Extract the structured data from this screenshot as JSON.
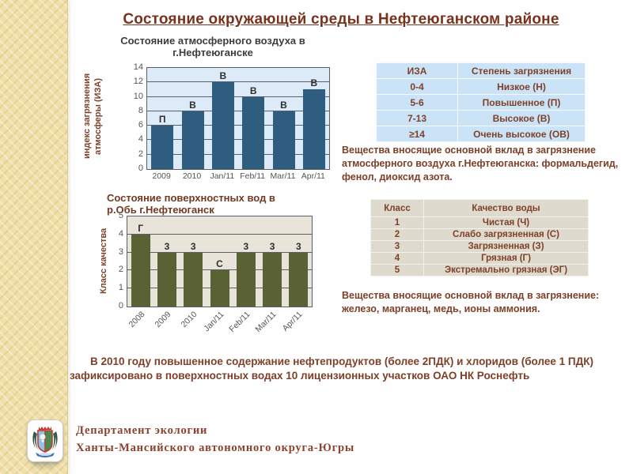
{
  "title": "Состояние окружающей среды в Нефтеюганском районе",
  "colors": {
    "accent_brown": "#7d4029",
    "air_bar": "#2e5d80",
    "air_plot_bg": "#dcebf7",
    "water_bar": "#5a6135",
    "water_plot_bg": "#e8e4da",
    "sidebar_tan": "#f0dfa7"
  },
  "chart_data": [
    {
      "type": "bar",
      "title": "Состояние атмосферного воздуха  в г.Нефтеюганске",
      "ylabel": "индекс загрязнения атмосферы (ИЗА)",
      "categories": [
        "2009",
        "2010",
        "Jan/11",
        "Feb/11",
        "Mar/11",
        "Apr/11"
      ],
      "values": [
        6,
        8,
        12,
        10,
        8,
        11
      ],
      "point_labels": [
        "П",
        "В",
        "В",
        "В",
        "В",
        "В"
      ],
      "ylim": [
        0,
        14
      ],
      "ytick_step": 2,
      "grid": true,
      "legend": "none",
      "bar_color": "#2e5d80",
      "plot_bg": "#dcebf7",
      "x_labels_rotated": false
    },
    {
      "type": "bar",
      "title": "Состояние поверхностных вод в р.Обь г.Нефтеюганск",
      "ylabel": "Класс качества",
      "categories": [
        "2008",
        "2009",
        "2010",
        "Jan/11",
        "Feb/11",
        "Mar/11",
        "Apr/11"
      ],
      "values": [
        4,
        3,
        3,
        2,
        3,
        3,
        3
      ],
      "point_labels": [
        "Г",
        "3",
        "3",
        "С",
        "3",
        "3",
        "3"
      ],
      "ylim": [
        0,
        5
      ],
      "ytick_step": 1,
      "grid": true,
      "legend": "none",
      "bar_color": "#5a6135",
      "plot_bg": "#e8e4da",
      "x_labels_rotated": true
    }
  ],
  "tables": [
    {
      "headers": [
        "ИЗА",
        "Степень загрязнения"
      ],
      "rows": [
        [
          "0-4",
          "Низкое (Н)"
        ],
        [
          "5-6",
          "Повышенное (П)"
        ],
        [
          "7-13",
          "Высокое (В)"
        ],
        [
          "≥14",
          "Очень высокое (ОВ)"
        ]
      ]
    },
    {
      "headers": [
        "Класс",
        "Качество воды"
      ],
      "rows": [
        [
          "1",
          "Чистая (Ч)"
        ],
        [
          "2",
          "Слабо загрязненная (С)"
        ],
        [
          "3",
          "Загрязненная (З)"
        ],
        [
          "4",
          "Грязная (Г)"
        ],
        [
          "5",
          "Экстремально грязная (ЭГ)"
        ]
      ]
    }
  ],
  "notes": {
    "air": "Вещества вносящие основной вклад в загрязнение атмосферного воздуха г.Нефтеюганска: формальдегид, фенол, диоксид азота.",
    "water": "Вещества вносящие основной вклад в загрязнение: железо, марганец, медь, ионы аммония.",
    "bottom": "В 2010 году повышенное содержание нефтепродуктов (более 2ПДК) и хлоридов (более 1 ПДК) зафиксировано в поверхностных водах 10 лицензионных участков ОАО НК Роснефть"
  },
  "footer": {
    "line1": "Департамент экологии",
    "line2": "Ханты-Мансийского автономного округа-Югры",
    "logo": "khanty-mansi-coat-of-arms"
  }
}
